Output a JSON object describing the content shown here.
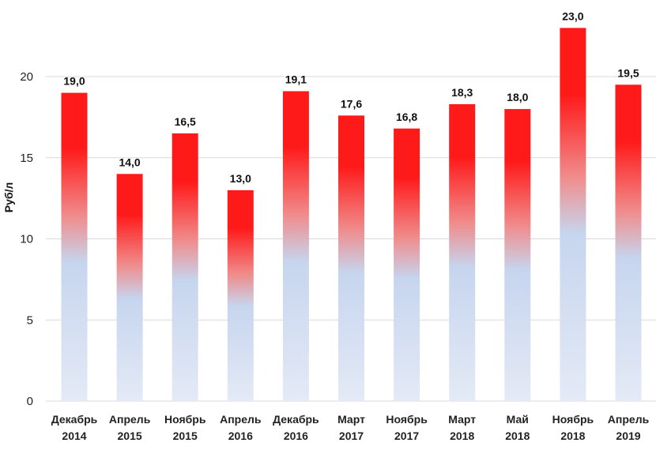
{
  "chart_data": {
    "type": "bar",
    "title": "",
    "xlabel": "",
    "ylabel": "Руб/л",
    "ylim": [
      0,
      24
    ],
    "yticks": [
      0,
      5,
      10,
      15,
      20
    ],
    "ytick_labels": [
      "0",
      "5",
      "10",
      "15",
      "20"
    ],
    "grid": true,
    "categories": [
      [
        "Декабрь",
        "2014"
      ],
      [
        "Апрель",
        "2015"
      ],
      [
        "Ноябрь",
        "2015"
      ],
      [
        "Апрель",
        "2016"
      ],
      [
        "Декабрь",
        "2016"
      ],
      [
        "Март",
        "2017"
      ],
      [
        "Ноябрь",
        "2017"
      ],
      [
        "Март",
        "2018"
      ],
      [
        "Май",
        "2018"
      ],
      [
        "Ноябрь",
        "2018"
      ],
      [
        "Апрель",
        "2019"
      ]
    ],
    "values": [
      19.0,
      14.0,
      16.5,
      13.0,
      19.1,
      17.6,
      16.8,
      18.3,
      18.0,
      23.0,
      19.5
    ],
    "value_labels": [
      "19,0",
      "14,0",
      "16,5",
      "13,0",
      "19,1",
      "17,6",
      "16,8",
      "18,3",
      "18,0",
      "23,0",
      "19,5"
    ],
    "colors": {
      "bar_top": "#ff1a1a",
      "bar_mid": "#f08c8c",
      "bar_lower": "#c6d5ee",
      "bar_bottom": "#e4eaf6",
      "grid": "#d9d9d9"
    }
  }
}
